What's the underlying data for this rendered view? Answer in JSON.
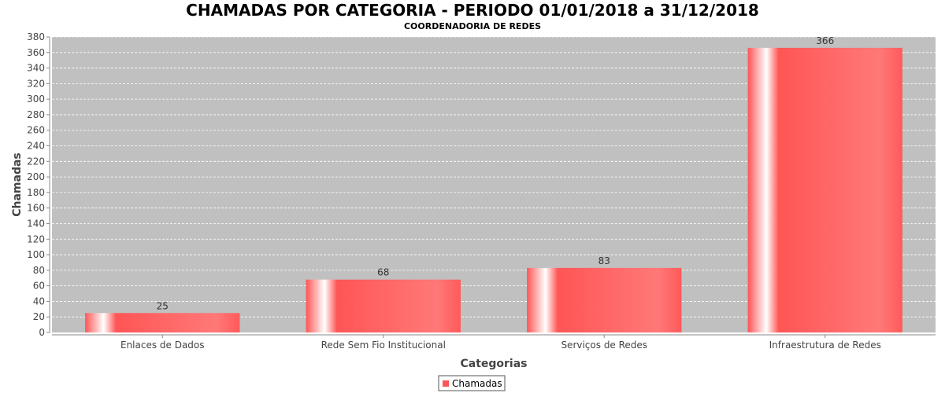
{
  "chart_data": {
    "type": "bar",
    "title": "CHAMADAS POR CATEGORIA - PERIODO 01/01/2018 a 31/12/2018",
    "subtitle": "COORDENADORIA DE REDES",
    "xlabel": "Categorias",
    "ylabel": "Chamadas",
    "categories": [
      "Enlaces de Dados",
      "Rede Sem Fio Institucional",
      "Serviços de Redes",
      "Infraestrutura de Redes"
    ],
    "series": [
      {
        "name": "Chamadas",
        "values": [
          25,
          68,
          83,
          366
        ]
      }
    ],
    "ylim": [
      0,
      380
    ],
    "ytick_step": 20,
    "grid": true,
    "legend_position": "bottom-center",
    "colors": {
      "bar": "#ff5555",
      "plot_background": "#c0c0c0",
      "grid": "#ffffff"
    }
  }
}
